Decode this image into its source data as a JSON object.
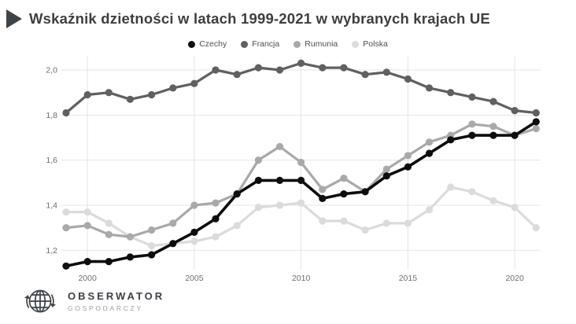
{
  "header": {
    "title": "Wskaźnik dzietności w latach 1999-2021 w wybranych krajach UE"
  },
  "chart_data": {
    "type": "line",
    "title": "Wskaźnik dzietności w latach 1999-2021 w wybranych krajach UE",
    "x": [
      1999,
      2000,
      2001,
      2002,
      2003,
      2004,
      2005,
      2006,
      2007,
      2008,
      2009,
      2010,
      2011,
      2012,
      2013,
      2014,
      2015,
      2016,
      2017,
      2018,
      2019,
      2020,
      2021
    ],
    "series": [
      {
        "name": "Czechy",
        "color": "#0d0d0d",
        "values": [
          1.13,
          1.15,
          1.15,
          1.17,
          1.18,
          1.23,
          1.28,
          1.34,
          1.45,
          1.51,
          1.51,
          1.51,
          1.43,
          1.45,
          1.46,
          1.53,
          1.57,
          1.63,
          1.69,
          1.71,
          1.71,
          1.71,
          1.77
        ]
      },
      {
        "name": "Francja",
        "color": "#606060",
        "values": [
          1.81,
          1.89,
          1.9,
          1.87,
          1.89,
          1.92,
          1.94,
          2.0,
          1.98,
          2.01,
          2.0,
          2.03,
          2.01,
          2.01,
          1.98,
          1.99,
          1.96,
          1.92,
          1.9,
          1.88,
          1.86,
          1.82,
          1.81
        ]
      },
      {
        "name": "Rumunia",
        "color": "#a9a9a9",
        "values": [
          1.3,
          1.31,
          1.27,
          1.26,
          1.29,
          1.32,
          1.4,
          1.41,
          1.45,
          1.6,
          1.66,
          1.59,
          1.47,
          1.52,
          1.46,
          1.56,
          1.62,
          1.68,
          1.71,
          1.76,
          1.75,
          1.71,
          1.74
        ]
      },
      {
        "name": "Polska",
        "color": "#dbdbdb",
        "values": [
          1.37,
          1.37,
          1.32,
          1.26,
          1.22,
          1.23,
          1.24,
          1.26,
          1.31,
          1.39,
          1.4,
          1.41,
          1.33,
          1.33,
          1.29,
          1.32,
          1.32,
          1.38,
          1.48,
          1.46,
          1.42,
          1.39,
          1.3
        ]
      }
    ],
    "xlabel": "",
    "ylabel": "",
    "ylim": [
      1.1,
      2.06
    ],
    "yticks": {
      "values": [
        2.0,
        1.8,
        1.6,
        1.4,
        1.2
      ],
      "labels": [
        "2,0",
        "1,8",
        "1,6",
        "1,4",
        "1,2"
      ]
    },
    "xticks": [
      2000,
      2005,
      2010,
      2015,
      2020
    ],
    "grid": true,
    "legend_position": "top-center",
    "legend_entries": [
      "Czechy",
      "Francja",
      "Rumunia",
      "Polska"
    ]
  },
  "footer": {
    "brand_line1": "OBSERWATOR",
    "brand_line2": "GOSPODARCZY"
  },
  "colors": {
    "grid": "#e4e4e4",
    "axis_text": "#6e6e6e",
    "title_text": "#3e3e3e",
    "marker": "#3f4449"
  }
}
